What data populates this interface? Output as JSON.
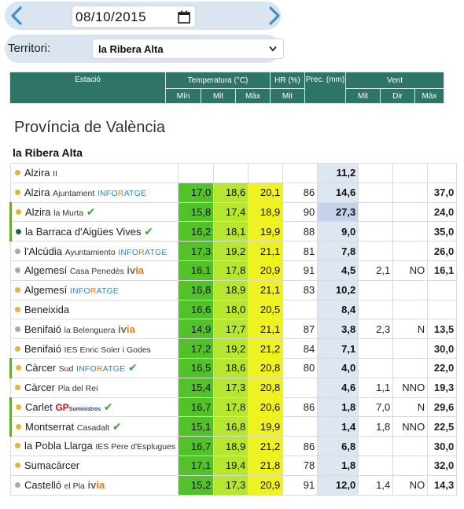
{
  "date_nav": {
    "prev_icon": "chevron-left-icon",
    "next_icon": "chevron-right-icon",
    "date_value": "08/10/2015",
    "calendar_icon": "calendar-icon",
    "accent": "#3d8fd4"
  },
  "territory": {
    "label": "Territori:",
    "selected": "la Ribera Alta"
  },
  "header": {
    "estacio": "Estació",
    "temperatura": "Temperatura (°C)",
    "hr": "HR (%)",
    "prec": "Prec. (mm)",
    "vent": "Vent",
    "t_min": "Mín",
    "t_mit": "Mit",
    "t_max": "Màx",
    "hr_mit": "Mit",
    "v_mit": "Mit",
    "v_dir": "Dir",
    "v_max": "Màx"
  },
  "province_title": "Província de València",
  "territory_title": "la Ribera Alta",
  "colors": {
    "header_bg": "#2e7568",
    "min_cell": "#53c12a",
    "mit_cell": "#b6e630",
    "max_cell": "#eef221",
    "prec_cell": "#dde6f1",
    "dot_orange": "#e2b440",
    "dot_green": "#1f6b3a",
    "dot_gray": "#a8a8a8"
  },
  "rows": [
    {
      "name": "Alzira",
      "sub": "II",
      "dot": "orange",
      "tmin": "",
      "tmit": "",
      "tmax": "",
      "hr": "",
      "prec": "11,2",
      "vmit": "",
      "vdir": "",
      "vmax": ""
    },
    {
      "name": "Alzira",
      "sub": "Ajuntament",
      "logo": "INFORATGE",
      "dot": "orange",
      "tmin": "17,0",
      "tmit": "18,6",
      "tmax": "20,1",
      "hr": "86",
      "prec": "14,6",
      "vmit": "",
      "vdir": "",
      "vmax": "37,0"
    },
    {
      "name": "Alzira",
      "sub": "la Murta",
      "dot": "orange",
      "tmin": "15,8",
      "tmit": "17,4",
      "tmax": "18,9",
      "hr": "90",
      "prec": "27,3",
      "vmit": "",
      "vdir": "",
      "vmax": "24,0"
    },
    {
      "name": "la Barraca d'Aigües Vives",
      "dot": "green",
      "tmin": "16,2",
      "tmit": "18,1",
      "tmax": "19,9",
      "hr": "88",
      "prec": "9,0",
      "vmit": "",
      "vdir": "",
      "vmax": "35,0"
    },
    {
      "name": "l'Alcúdia",
      "sub": "Ayuntamiento",
      "logo": "INFORATGE",
      "dot": "gray",
      "tmin": "17,3",
      "tmit": "19,2",
      "tmax": "21,1",
      "hr": "81",
      "prec": "7,8",
      "vmit": "",
      "vdir": "",
      "vmax": "26,0"
    },
    {
      "name": "Algemesí",
      "sub": "Casa Penedès",
      "logo": "ivia",
      "dot": "gray",
      "tmin": "16,1",
      "tmit": "17,8",
      "tmax": "20,9",
      "hr": "91",
      "prec": "4,5",
      "vmit": "2,1",
      "vdir": "NO",
      "vmax": "16,1"
    },
    {
      "name": "Algemesí",
      "logo": "INFORATGE",
      "dot": "orange",
      "tmin": "16,8",
      "tmit": "18,9",
      "tmax": "21,1",
      "hr": "83",
      "prec": "10,2",
      "vmit": "",
      "vdir": "",
      "vmax": ""
    },
    {
      "name": "Beneixida",
      "dot": "orange",
      "tmin": "16,6",
      "tmit": "18,0",
      "tmax": "20,5",
      "hr": "",
      "prec": "8,4",
      "vmit": "",
      "vdir": "",
      "vmax": ""
    },
    {
      "name": "Benifaió",
      "sub": "la Belenguera",
      "logo": "ivia",
      "dot": "gray",
      "tmin": "14,9",
      "tmit": "17,7",
      "tmax": "21,1",
      "hr": "87",
      "prec": "3,8",
      "vmit": "2,3",
      "vdir": "N",
      "vmax": "13,5"
    },
    {
      "name": "Benifaió",
      "sub": "IES Enric Soler i Godes",
      "dot": "orange",
      "tmin": "17,2",
      "tmit": "19,2",
      "tmax": "21,2",
      "hr": "84",
      "prec": "7,1",
      "vmit": "",
      "vdir": "",
      "vmax": "30,0"
    },
    {
      "name": "Càrcer",
      "sub": "Sud",
      "logo": "INFORATGE",
      "dot": "orange",
      "tmin": "16,5",
      "tmit": "18,6",
      "tmax": "20,8",
      "hr": "80",
      "prec": "4,0",
      "vmit": "",
      "vdir": "",
      "vmax": "22,0"
    },
    {
      "name": "Càrcer",
      "sub": "Pla del Rei",
      "dot": "orange",
      "tmin": "15,4",
      "tmit": "17,3",
      "tmax": "20,8",
      "hr": "",
      "prec": "4,6",
      "vmit": "1,1",
      "vdir": "NNO",
      "vmax": "19,3"
    },
    {
      "name": "Carlet",
      "logo": "GP",
      "logo_small": "Suministros",
      "dot": "orange",
      "tmin": "16,7",
      "tmit": "17,8",
      "tmax": "20,6",
      "hr": "86",
      "prec": "1,8",
      "vmit": "7,0",
      "vdir": "N",
      "vmax": "29,6"
    },
    {
      "name": "Montserrat",
      "sub": "Casadalt",
      "dot": "orange",
      "tmin": "15,1",
      "tmit": "16,8",
      "tmax": "19,9",
      "hr": "",
      "prec": "1,4",
      "vmit": "1,8",
      "vdir": "NNO",
      "vmax": "22,5"
    },
    {
      "name": "la Pobla Llarga",
      "sub": "IES Pere d'Esplugues",
      "dot": "orange",
      "tmin": "16,7",
      "tmit": "18,9",
      "tmax": "21,2",
      "hr": "86",
      "prec": "6,8",
      "vmit": "",
      "vdir": "",
      "vmax": "30,0"
    },
    {
      "name": "Sumacàrcer",
      "dot": "orange",
      "tmin": "17,1",
      "tmit": "19,4",
      "tmax": "21,8",
      "hr": "78",
      "prec": "1,8",
      "vmit": "",
      "vdir": "",
      "vmax": "32,0"
    },
    {
      "name": "Castelló",
      "sub": "el Pla",
      "logo": "ivia",
      "dot": "gray",
      "tmin": "15,2",
      "tmit": "17,3",
      "tmax": "20,9",
      "hr": "91",
      "prec": "12,0",
      "vmit": "1,4",
      "vdir": "NO",
      "vmax": "14,3"
    }
  ]
}
